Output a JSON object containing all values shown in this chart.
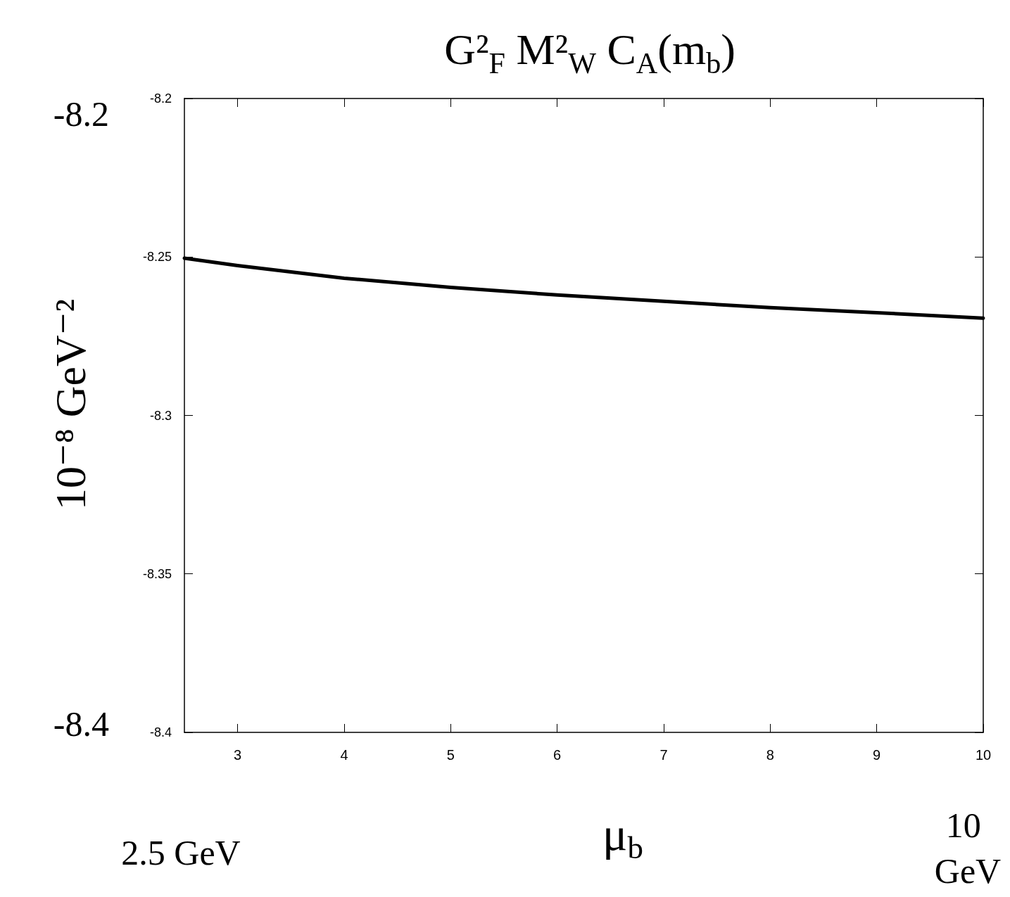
{
  "chart_data": {
    "type": "line",
    "title": "G²$_{F}$ M²$_{W}$ C$_{A}$(m$_{b}$)",
    "xlabel": "μ$_{b}$",
    "ylabel": "10⁻⁸ GeV⁻²",
    "x": [
      2.5,
      3,
      4,
      5,
      6,
      7,
      8,
      9,
      10
    ],
    "series": [
      {
        "color": "#000000",
        "values": [
          -8.2504,
          -8.2527,
          -8.2567,
          -8.2596,
          -8.262,
          -8.264,
          -8.266,
          -8.2676,
          -8.2693
        ]
      }
    ],
    "xlim": [
      2.5,
      10
    ],
    "ylim": [
      -8.4,
      -8.2
    ],
    "xticks": [
      3,
      4,
      5,
      6,
      7,
      8,
      9,
      10
    ],
    "yticks": [
      -8.2,
      -8.25,
      -8.3,
      -8.35,
      -8.4
    ],
    "line_style": "solid",
    "annotations": [
      "-8.2",
      "-8.4",
      "2.5 GeV",
      "10 GeV"
    ]
  }
}
